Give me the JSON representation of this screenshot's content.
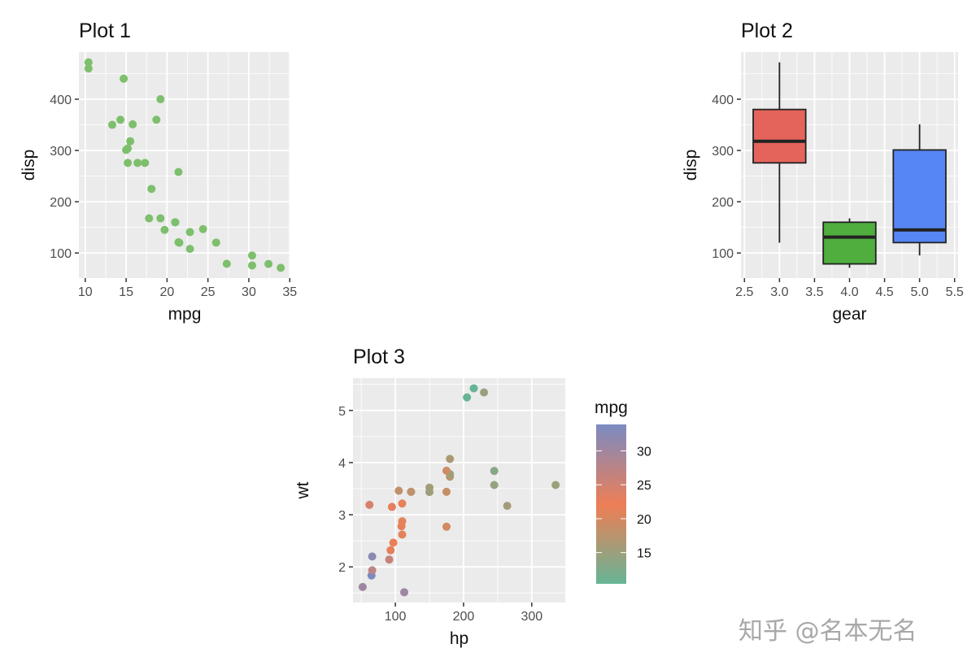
{
  "chart_data": [
    {
      "type": "scatter",
      "title": "Plot 1",
      "xlabel": "mpg",
      "ylabel": "disp",
      "xlim": [
        9.225,
        35.075
      ],
      "ylim": [
        51.05,
        492.05
      ],
      "xticks": [
        10,
        15,
        20,
        25,
        30,
        35
      ],
      "xtick_labels": [
        "10",
        "15",
        "20",
        "25",
        "30",
        "35"
      ],
      "xminor": [
        12.5,
        17.5,
        22.5,
        27.5,
        32.5
      ],
      "yticks": [
        100,
        200,
        300,
        400
      ],
      "ytick_labels": [
        "100",
        "200",
        "300",
        "400"
      ],
      "yminor": [
        150,
        250,
        350,
        450
      ],
      "grid": true,
      "point_color": "#7dbf6c",
      "points": [
        [
          21.0,
          160
        ],
        [
          21.0,
          160
        ],
        [
          22.8,
          108
        ],
        [
          21.4,
          258
        ],
        [
          18.7,
          360
        ],
        [
          18.1,
          225
        ],
        [
          14.3,
          360
        ],
        [
          24.4,
          146.7
        ],
        [
          22.8,
          140.8
        ],
        [
          19.2,
          167.6
        ],
        [
          17.8,
          167.6
        ],
        [
          16.4,
          275.8
        ],
        [
          17.3,
          275.8
        ],
        [
          15.2,
          275.8
        ],
        [
          10.4,
          472
        ],
        [
          10.4,
          460
        ],
        [
          14.7,
          440
        ],
        [
          32.4,
          78.7
        ],
        [
          30.4,
          75.7
        ],
        [
          33.9,
          71.1
        ],
        [
          21.5,
          120.1
        ],
        [
          15.5,
          318
        ],
        [
          15.2,
          304
        ],
        [
          13.3,
          350
        ],
        [
          19.2,
          400
        ],
        [
          27.3,
          79
        ],
        [
          26.0,
          120.3
        ],
        [
          30.4,
          95.1
        ],
        [
          15.8,
          351
        ],
        [
          19.7,
          145
        ],
        [
          15.0,
          301
        ],
        [
          21.4,
          121
        ]
      ]
    },
    {
      "type": "boxplot",
      "title": "Plot 2",
      "xlabel": "gear",
      "ylabel": "disp",
      "xlim": [
        2.45,
        5.55
      ],
      "ylim": [
        51.05,
        492.05
      ],
      "xticks": [
        2.5,
        3.0,
        3.5,
        4.0,
        4.5,
        5.0,
        5.5
      ],
      "xtick_labels": [
        "2.5",
        "3.0",
        "3.5",
        "4.0",
        "4.5",
        "5.0",
        "5.5"
      ],
      "xminor": [
        2.75,
        3.25,
        3.75,
        4.25,
        4.75,
        5.25
      ],
      "yticks": [
        100,
        200,
        300,
        400
      ],
      "ytick_labels": [
        "100",
        "200",
        "300",
        "400"
      ],
      "yminor": [
        150,
        250,
        350,
        450
      ],
      "grid": true,
      "boxes": [
        {
          "gear": 3,
          "min": 120.1,
          "q1": 275.8,
          "median": 318,
          "q3": 380,
          "max": 472,
          "color": "#e4645c"
        },
        {
          "gear": 4,
          "min": 71.1,
          "q1": 78.7,
          "median": 130.9,
          "q3": 160,
          "max": 167.6,
          "color": "#4fae3d"
        },
        {
          "gear": 5,
          "min": 95.1,
          "q1": 120.3,
          "median": 145,
          "q3": 301,
          "max": 351,
          "color": "#5686f5"
        }
      ]
    },
    {
      "type": "scatter",
      "title": "Plot 3",
      "xlabel": "hp",
      "ylabel": "wt",
      "xlim": [
        37.85,
        349.15
      ],
      "ylim": [
        1.317,
        5.62
      ],
      "xticks": [
        100,
        200,
        300
      ],
      "xtick_labels": [
        "100",
        "200",
        "300"
      ],
      "xminor": [
        50,
        150,
        250
      ],
      "yticks": [
        2,
        3,
        4,
        5
      ],
      "ytick_labels": [
        "2",
        "3",
        "4",
        "5"
      ],
      "yminor": [
        1.5,
        2.5,
        3.5,
        4.5,
        5.5
      ],
      "grid": true,
      "color_by": "mpg",
      "legend": {
        "title": "mpg",
        "position": "right",
        "range": [
          10.4,
          33.9
        ],
        "ticks": [
          15,
          20,
          25,
          30
        ],
        "tick_labels": [
          "15",
          "20",
          "25",
          "30"
        ],
        "colors": {
          "low": "#66b596",
          "mid": "#ee7e55",
          "high": "#7b8bc2"
        },
        "mid_value": 22
      },
      "points": [
        [
          110,
          2.62,
          21.0
        ],
        [
          110,
          2.875,
          21.0
        ],
        [
          93,
          2.32,
          22.8
        ],
        [
          110,
          3.215,
          21.4
        ],
        [
          175,
          3.44,
          18.7
        ],
        [
          105,
          3.46,
          18.1
        ],
        [
          245,
          3.57,
          14.3
        ],
        [
          62,
          3.19,
          24.4
        ],
        [
          95,
          3.15,
          22.8
        ],
        [
          123,
          3.44,
          19.2
        ],
        [
          123,
          3.44,
          17.8
        ],
        [
          180,
          4.07,
          16.4
        ],
        [
          180,
          3.73,
          17.3
        ],
        [
          180,
          3.78,
          15.2
        ],
        [
          205,
          5.25,
          10.4
        ],
        [
          215,
          5.424,
          10.4
        ],
        [
          230,
          5.345,
          14.7
        ],
        [
          66,
          2.2,
          32.4
        ],
        [
          52,
          1.615,
          30.4
        ],
        [
          65,
          1.835,
          33.9
        ],
        [
          97,
          2.465,
          21.5
        ],
        [
          150,
          3.52,
          15.5
        ],
        [
          150,
          3.435,
          15.2
        ],
        [
          245,
          3.84,
          13.3
        ],
        [
          175,
          3.845,
          19.2
        ],
        [
          66,
          1.935,
          27.3
        ],
        [
          91,
          2.14,
          26.0
        ],
        [
          113,
          1.513,
          30.4
        ],
        [
          264,
          3.17,
          15.8
        ],
        [
          175,
          2.77,
          19.7
        ],
        [
          335,
          3.57,
          15.0
        ],
        [
          109,
          2.78,
          21.4
        ]
      ]
    }
  ],
  "watermark": "知乎 @名本无名"
}
